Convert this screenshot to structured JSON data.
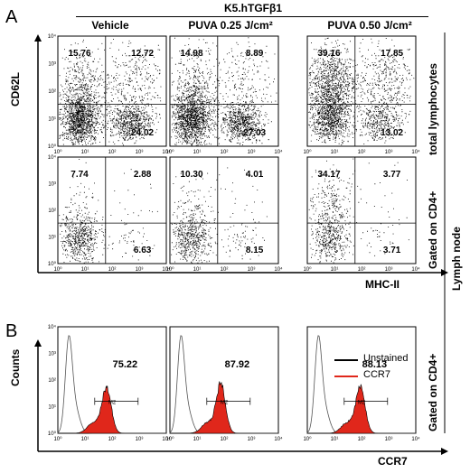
{
  "panel_labels": [
    "A",
    "B"
  ],
  "header": {
    "group": "K5.hTGFβ1"
  },
  "conditions": [
    "Vehicle",
    "PUVA 0.25 J/cm²",
    "PUVA 0.50 J/cm²"
  ],
  "axes": {
    "scatter_y": "CD62L",
    "scatter_x": "MHC-II",
    "hist_y": "Counts",
    "hist_x": "CCR7",
    "ticks": [
      "10⁰",
      "10¹",
      "10²",
      "10³",
      "10⁴"
    ]
  },
  "row_labels": {
    "row1": "total lymphocytes",
    "row2": "Gated on CD4+",
    "row3": "Gated on CD4+",
    "group": "Lymph node"
  },
  "legend": {
    "unstained": "Unstained",
    "ccr7": "CCR7"
  },
  "gate_label": "M2",
  "colors": {
    "unstained": "#555555",
    "ccr7": "#e0271b",
    "dots": "#000000"
  },
  "chart_data": [
    {
      "type": "scatter",
      "row": "total lymphocytes",
      "xlabel": "MHC-II",
      "ylabel": "CD62L",
      "log_scale": true,
      "xlim": [
        1,
        10000
      ],
      "ylim": [
        1,
        10000
      ],
      "panels": [
        {
          "condition": "Vehicle",
          "quadrants": {
            "UL": "15.76",
            "UR": "12.72",
            "LR": "24.02",
            "LL": ""
          }
        },
        {
          "condition": "PUVA 0.25 J/cm²",
          "quadrants": {
            "UL": "14.98",
            "UR": "8.89",
            "LR": "27.03",
            "LL": ""
          }
        },
        {
          "condition": "PUVA 0.50 J/cm²",
          "quadrants": {
            "UL": "39.16",
            "UR": "17.85",
            "LR": "13.02",
            "LL": ""
          }
        }
      ]
    },
    {
      "type": "scatter",
      "row": "Gated on CD4+",
      "xlabel": "MHC-II",
      "ylabel": "CD62L",
      "log_scale": true,
      "xlim": [
        1,
        10000
      ],
      "ylim": [
        1,
        10000
      ],
      "panels": [
        {
          "condition": "Vehicle",
          "quadrants": {
            "UL": "7.74",
            "UR": "2.88",
            "LR": "6.63",
            "LL": ""
          }
        },
        {
          "condition": "PUVA 0.25 J/cm²",
          "quadrants": {
            "UL": "10.30",
            "UR": "4.01",
            "LR": "8.15",
            "LL": ""
          }
        },
        {
          "condition": "PUVA 0.50 J/cm²",
          "quadrants": {
            "UL": "34.17",
            "UR": "3.77",
            "LR": "3.71",
            "LL": ""
          }
        }
      ]
    },
    {
      "type": "area",
      "row": "Gated on CD4+",
      "xlabel": "CCR7",
      "ylabel": "Counts",
      "log_scale": true,
      "xlim": [
        1,
        10000
      ],
      "series": [
        {
          "name": "Unstained"
        },
        {
          "name": "CCR7"
        }
      ],
      "panels": [
        {
          "condition": "Vehicle",
          "percent_positive": "75.22"
        },
        {
          "condition": "PUVA 0.25 J/cm²",
          "percent_positive": "87.92"
        },
        {
          "condition": "PUVA 0.50 J/cm²",
          "percent_positive": "88.13"
        }
      ]
    }
  ]
}
